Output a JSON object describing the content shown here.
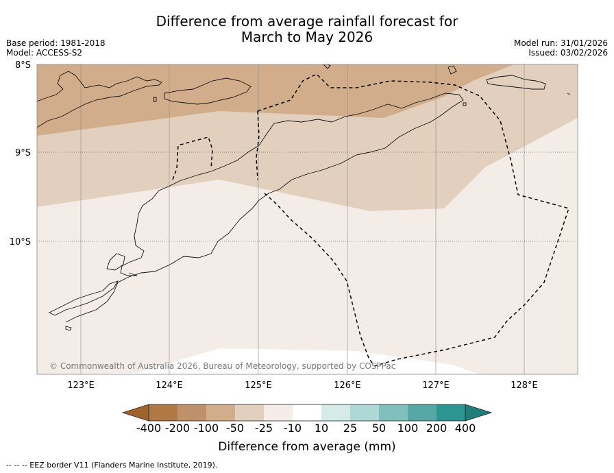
{
  "title_line1": "Difference from average rainfall forecast for",
  "title_line2": "March to May 2026",
  "base_period": "Base period: 1981-2018",
  "model": "Model: ACCESS-S2",
  "model_run": "Model run: 31/01/2026",
  "issued": "Issued: 03/02/2026",
  "lat_labels": [
    "8°S",
    "9°S",
    "10°S"
  ],
  "lon_labels": [
    "123°E",
    "124°E",
    "125°E",
    "126°E",
    "127°E",
    "128°E"
  ],
  "copyright": "© Commonwealth of Australia 2026, Bureau of Meteorology, supported by COSPPac",
  "colorbar": {
    "ticks": [
      "-400",
      "-200",
      "-100",
      "-50",
      "-25",
      "-10",
      "10",
      "25",
      "50",
      "100",
      "200",
      "400"
    ],
    "colors": [
      "#a0632e",
      "#b07845",
      "#bf916a",
      "#d2ad8b",
      "#e3cfbd",
      "#f4ece6",
      "#ffffff",
      "#d4ebe8",
      "#add8d5",
      "#81bfbd",
      "#56a7a5",
      "#2d9591",
      "#1f7e7b"
    ],
    "label": "Difference from average (mm)"
  },
  "legend_note": "--  --  -- EEZ border V11 (Flanders Marine Institute, 2019).",
  "icons": {
    "map": "map-icon"
  }
}
